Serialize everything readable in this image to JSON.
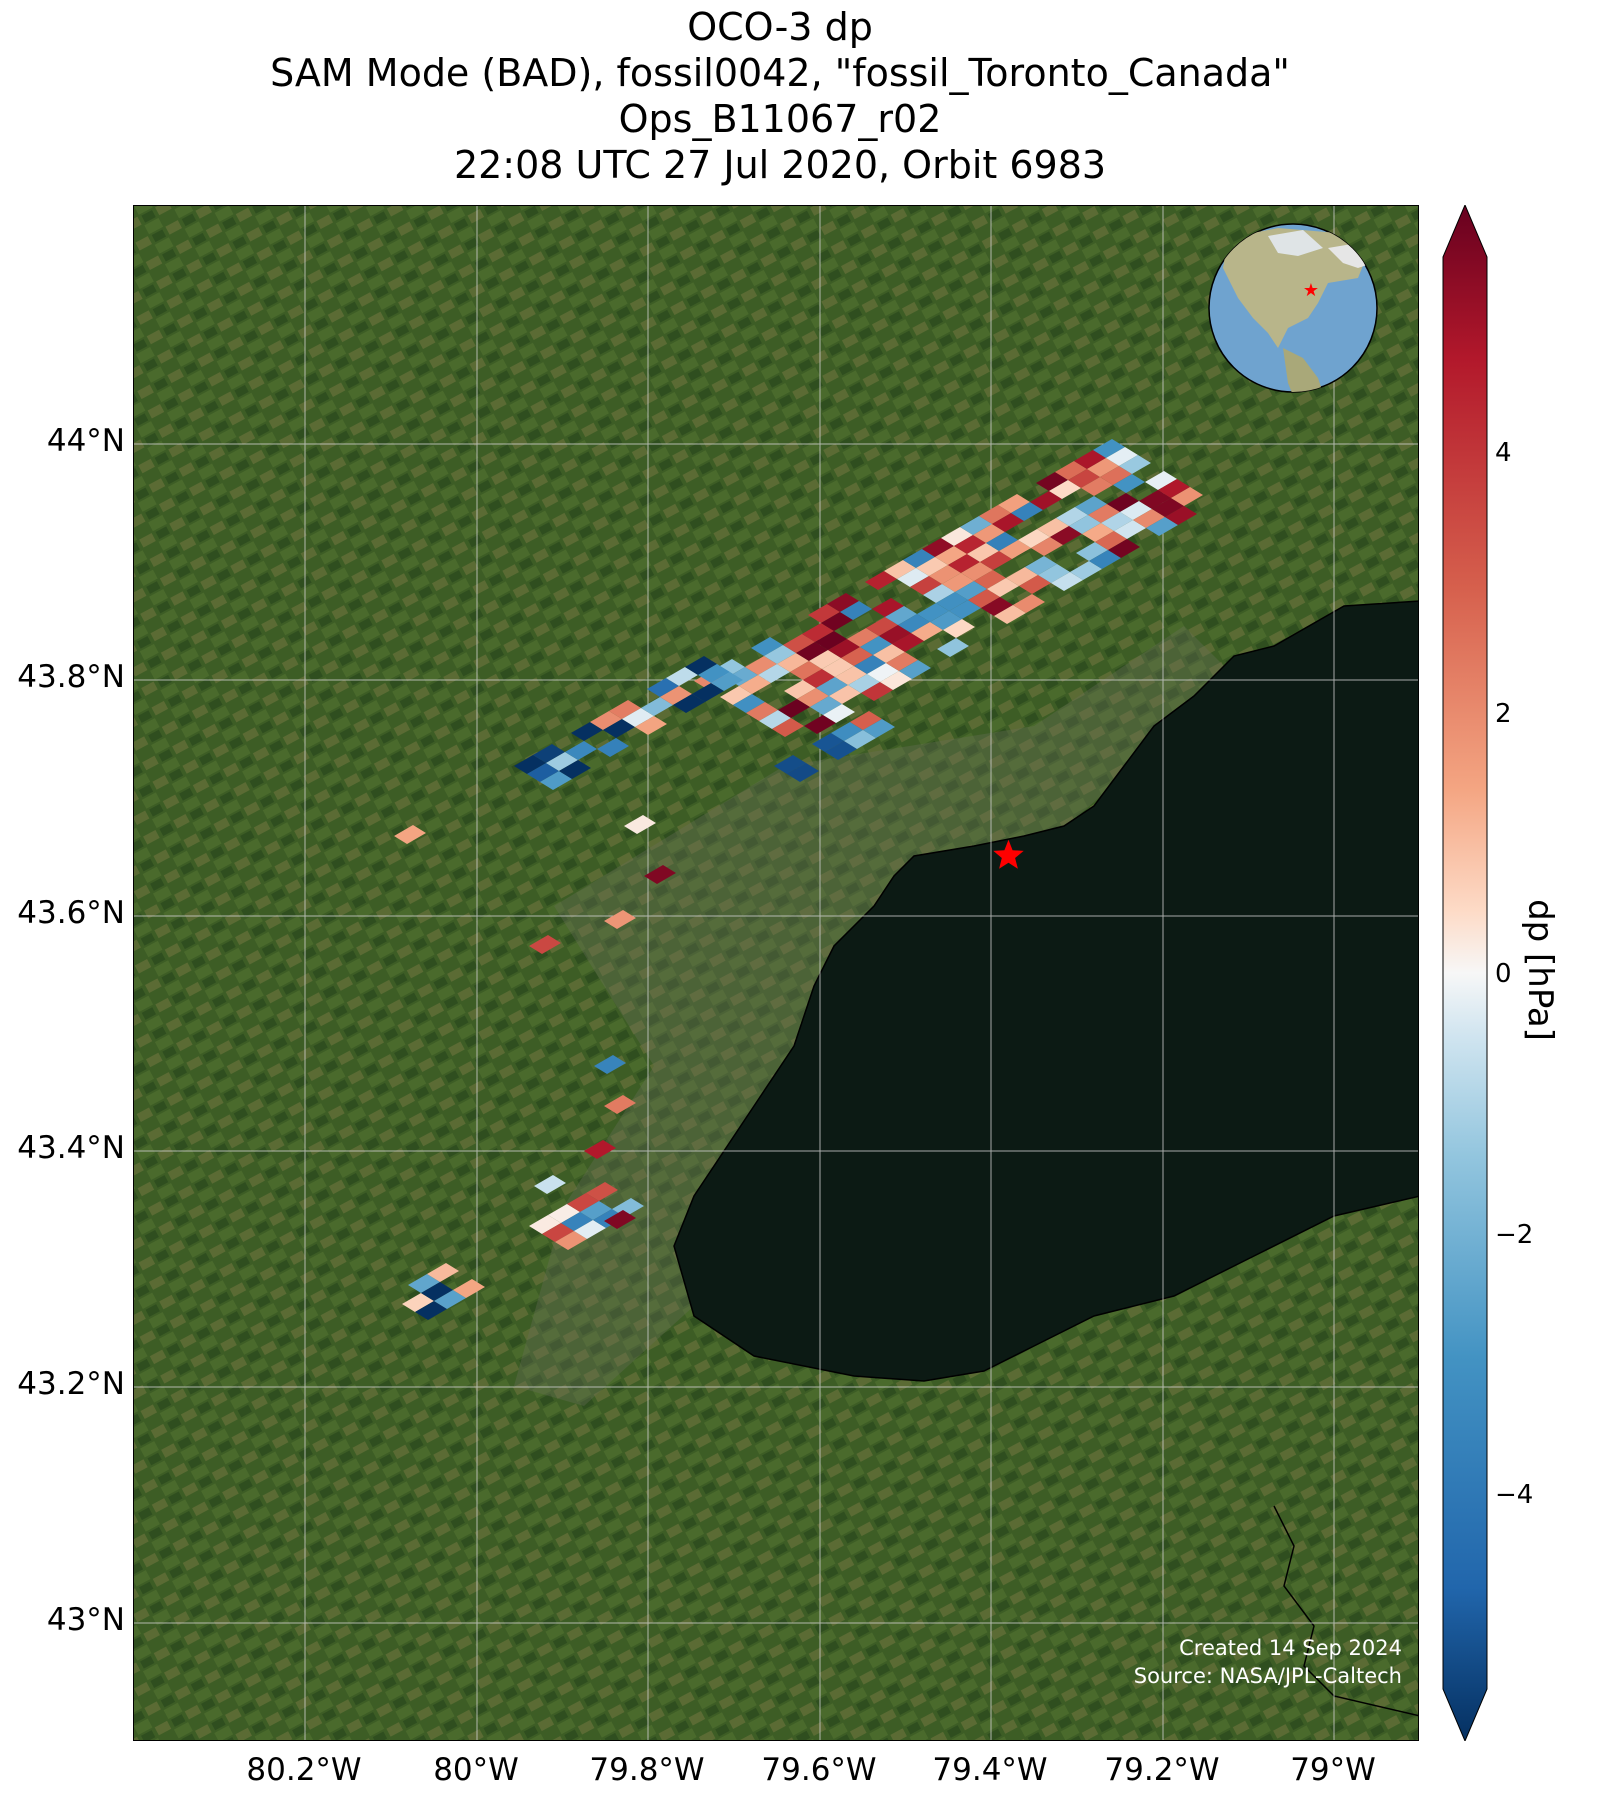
{
  "title": {
    "line1": "OCO-3 dp",
    "line2": "SAM Mode (BAD), fossil0042, \"fossil_Toronto_Canada\"",
    "line3": "Ops_B11067_r02",
    "line4": "22:08 UTC 27 Jul 2020, Orbit 6983"
  },
  "map": {
    "lat_ticks": [
      "44°N",
      "43.8°N",
      "43.6°N",
      "43.4°N",
      "43.2°N",
      "43°N"
    ],
    "lon_ticks": [
      "80.2°W",
      "80°W",
      "79.8°W",
      "79.6°W",
      "79.4°W",
      "79.2°W",
      "79°W"
    ],
    "lat_range": [
      42.9,
      44.2
    ],
    "lon_range": [
      -80.4,
      -78.9
    ],
    "target_marker": {
      "lat": 43.65,
      "lon": -79.38,
      "color": "#ff0000",
      "symbol": "star"
    },
    "credit_line1": "Created 14 Sep 2024",
    "credit_line2": "Source: NASA/JPL-Caltech",
    "land_color": "#3a5a24",
    "lake_color": "#0c1a14"
  },
  "colorbar": {
    "label": "dp [hPa]",
    "ticks": [
      "4",
      "2",
      "0",
      "−2",
      "−4"
    ],
    "range": [
      -5.5,
      5.5
    ],
    "colormap": "RdBu_r",
    "extend": "both"
  },
  "soundings_dp_hPa": {
    "note_colormap": "diverging blue (negative) to red (positive)",
    "sample_values": [
      4.5,
      3.2,
      1.8,
      0.6,
      -0.4,
      -1.5,
      -2.8,
      -4.6
    ]
  }
}
